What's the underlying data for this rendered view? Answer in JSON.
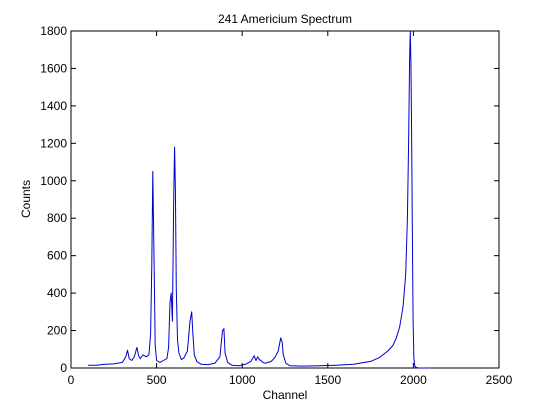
{
  "chart_data": {
    "type": "line",
    "title": "241 Americium Spectrum",
    "xlabel": "Channel",
    "ylabel": "Counts",
    "xlim": [
      0,
      2500
    ],
    "ylim": [
      0,
      1800
    ],
    "xticks": [
      0,
      500,
      1000,
      1500,
      2000,
      2500
    ],
    "yticks": [
      0,
      200,
      400,
      600,
      800,
      1000,
      1200,
      1400,
      1600,
      1800
    ],
    "grid": false,
    "legend": "none",
    "series": [
      {
        "color": "#0000cc",
        "x": [
          100,
          150,
          200,
          250,
          300,
          320,
          330,
          340,
          355,
          370,
          385,
          395,
          405,
          420,
          440,
          455,
          465,
          472,
          478,
          485,
          492,
          500,
          520,
          540,
          560,
          570,
          578,
          585,
          592,
          600,
          605,
          610,
          615,
          622,
          630,
          645,
          660,
          680,
          695,
          705,
          712,
          720,
          735,
          760,
          800,
          840,
          870,
          885,
          893,
          900,
          915,
          940,
          980,
          1020,
          1050,
          1070,
          1080,
          1090,
          1100,
          1110,
          1120,
          1135,
          1150,
          1170,
          1190,
          1210,
          1225,
          1233,
          1240,
          1255,
          1280,
          1350,
          1450,
          1550,
          1650,
          1750,
          1800,
          1850,
          1880,
          1900,
          1920,
          1940,
          1955,
          1965,
          1972,
          1978,
          1982,
          1986,
          1990,
          1994,
          1998,
          2003,
          2008,
          2015,
          2030,
          2060,
          2100
        ],
        "y": [
          15,
          15,
          20,
          22,
          30,
          60,
          95,
          50,
          40,
          60,
          110,
          65,
          50,
          70,
          60,
          70,
          180,
          550,
          1050,
          600,
          120,
          40,
          30,
          40,
          50,
          110,
          350,
          400,
          250,
          900,
          1180,
          950,
          420,
          150,
          80,
          45,
          55,
          90,
          250,
          300,
          180,
          70,
          35,
          20,
          18,
          25,
          60,
          200,
          210,
          80,
          30,
          15,
          12,
          20,
          35,
          65,
          40,
          60,
          45,
          40,
          30,
          25,
          30,
          35,
          55,
          90,
          160,
          140,
          70,
          25,
          12,
          10,
          12,
          15,
          20,
          35,
          55,
          90,
          120,
          160,
          220,
          330,
          500,
          800,
          1200,
          1650,
          1800,
          1600,
          1200,
          700,
          250,
          50,
          10,
          3,
          0,
          0,
          0
        ]
      }
    ]
  }
}
